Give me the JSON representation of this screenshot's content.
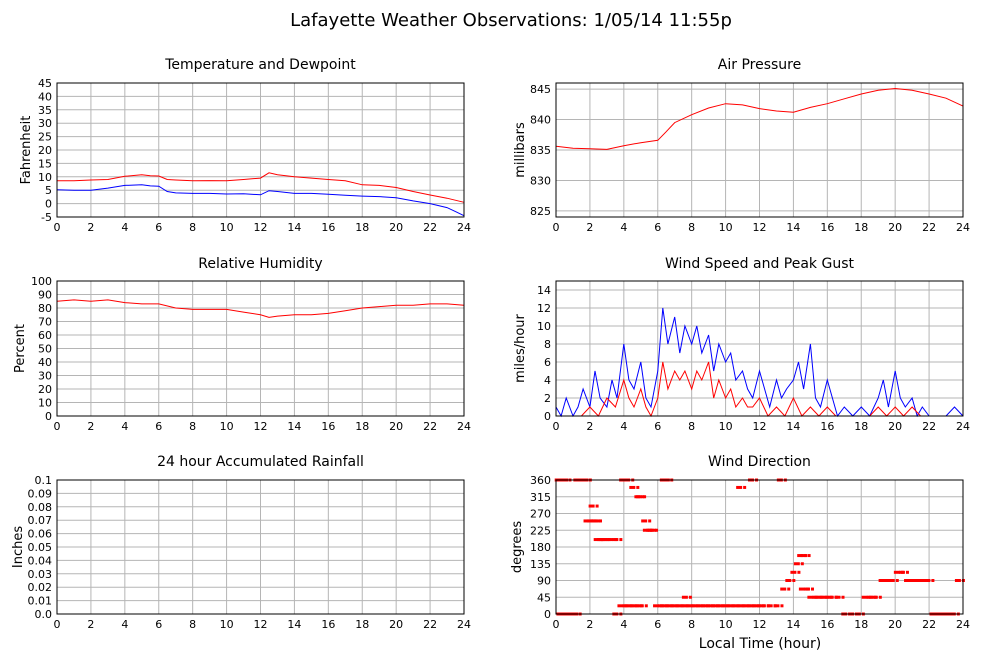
{
  "page": {
    "title": "Lafayette Weather Observations: 1/05/14 11:55p",
    "xlabel": "Local Time (hour)"
  },
  "colors": {
    "red": "#ff0000",
    "blue": "#0000ff",
    "grid": "#b5b5b5"
  },
  "chart_data": [
    {
      "id": "temp",
      "type": "line",
      "title": "Temperature and Dewpoint",
      "xlabel": "",
      "ylabel": "Fahrenheit",
      "xlim": [
        0,
        24
      ],
      "ylim": [
        -5,
        45
      ],
      "xticks": [
        0,
        2,
        4,
        6,
        8,
        10,
        12,
        14,
        16,
        18,
        20,
        22,
        24
      ],
      "yticks": [
        -5,
        0,
        5,
        10,
        15,
        20,
        25,
        30,
        35,
        40,
        45
      ],
      "grid": true,
      "series": [
        {
          "color": "#ff0000",
          "x": [
            0,
            1,
            2,
            3,
            4,
            5,
            5.5,
            6,
            6.5,
            7,
            8,
            9,
            10,
            11,
            12,
            12.5,
            13,
            14,
            15,
            16,
            17,
            18,
            19,
            20,
            21,
            22,
            23,
            24
          ],
          "y": [
            8.5,
            8.5,
            8.8,
            9.0,
            10.2,
            10.8,
            10.4,
            10.3,
            9.0,
            8.8,
            8.5,
            8.6,
            8.5,
            9.0,
            9.5,
            11.5,
            10.8,
            10.0,
            9.5,
            9.0,
            8.5,
            7.0,
            6.8,
            6.0,
            4.5,
            3.2,
            2.0,
            0.5
          ]
        },
        {
          "color": "#0000ff",
          "x": [
            0,
            1,
            2,
            3,
            4,
            5,
            5.5,
            6,
            6.5,
            7,
            8,
            9,
            10,
            11,
            12,
            12.5,
            13,
            14,
            15,
            16,
            17,
            18,
            19,
            20,
            21,
            22,
            23,
            23.5,
            24
          ],
          "y": [
            5.2,
            5.0,
            5.0,
            5.8,
            6.8,
            7.0,
            6.6,
            6.5,
            4.5,
            4.0,
            3.8,
            3.8,
            3.6,
            3.7,
            3.3,
            4.8,
            4.5,
            3.8,
            3.8,
            3.5,
            3.1,
            2.8,
            2.6,
            2.2,
            1.0,
            0.0,
            -1.5,
            -3.0,
            -4.5
          ]
        }
      ]
    },
    {
      "id": "pressure",
      "type": "line",
      "title": "Air Pressure",
      "xlabel": "",
      "ylabel": "millibars",
      "xlim": [
        0,
        24
      ],
      "ylim": [
        824,
        846
      ],
      "xticks": [
        0,
        2,
        4,
        6,
        8,
        10,
        12,
        14,
        16,
        18,
        20,
        22,
        24
      ],
      "yticks": [
        825,
        830,
        835,
        840,
        845
      ],
      "grid": true,
      "series": [
        {
          "color": "#ff0000",
          "x": [
            0,
            1,
            2,
            3,
            4,
            5,
            6,
            6.5,
            7,
            8,
            9,
            10,
            11,
            12,
            13,
            14,
            15,
            16,
            17,
            18,
            19,
            20,
            21,
            22,
            23,
            24
          ],
          "y": [
            835.6,
            835.3,
            835.2,
            835.1,
            835.7,
            836.2,
            836.6,
            838.0,
            839.5,
            840.8,
            841.9,
            842.6,
            842.4,
            841.8,
            841.4,
            841.2,
            842.0,
            842.6,
            843.4,
            844.2,
            844.8,
            845.1,
            844.8,
            844.2,
            843.5,
            842.2
          ]
        }
      ]
    },
    {
      "id": "humidity",
      "type": "line",
      "title": "Relative Humidity",
      "xlabel": "",
      "ylabel": "Percent",
      "xlim": [
        0,
        24
      ],
      "ylim": [
        0,
        100
      ],
      "xticks": [
        0,
        2,
        4,
        6,
        8,
        10,
        12,
        14,
        16,
        18,
        20,
        22,
        24
      ],
      "yticks": [
        0,
        10,
        20,
        30,
        40,
        50,
        60,
        70,
        80,
        90,
        100
      ],
      "grid": true,
      "series": [
        {
          "color": "#ff0000",
          "x": [
            0,
            1,
            2,
            3,
            4,
            5,
            6,
            7,
            8,
            9,
            10,
            11,
            12,
            12.5,
            13,
            14,
            15,
            16,
            17,
            18,
            19,
            20,
            21,
            22,
            23,
            24
          ],
          "y": [
            85,
            86,
            85,
            86,
            84,
            83,
            83,
            80,
            79,
            79,
            79,
            77,
            75,
            73,
            74,
            75,
            75,
            76,
            78,
            80,
            81,
            82,
            82,
            83,
            83,
            82
          ]
        }
      ]
    },
    {
      "id": "wind",
      "type": "line",
      "title": "Wind Speed and Peak Gust",
      "xlabel": "",
      "ylabel": "miles/hour",
      "xlim": [
        0,
        24
      ],
      "ylim": [
        0,
        15
      ],
      "xticks": [
        0,
        2,
        4,
        6,
        8,
        10,
        12,
        14,
        16,
        18,
        20,
        22,
        24
      ],
      "yticks": [
        0,
        2,
        4,
        6,
        8,
        10,
        12,
        14
      ],
      "grid": true,
      "series": [
        {
          "color": "#0000ff",
          "x": [
            0,
            0.3,
            0.6,
            1,
            1.3,
            1.6,
            2,
            2.3,
            2.6,
            3,
            3.3,
            3.6,
            4,
            4.3,
            4.6,
            5,
            5.3,
            5.6,
            6,
            6.3,
            6.6,
            7,
            7.3,
            7.6,
            8,
            8.3,
            8.6,
            9,
            9.3,
            9.6,
            10,
            10.3,
            10.6,
            11,
            11.3,
            11.6,
            12,
            12.3,
            12.6,
            13,
            13.3,
            13.6,
            14,
            14.3,
            14.6,
            15,
            15.3,
            15.6,
            16,
            16.3,
            16.6,
            17,
            17.5,
            18,
            18.5,
            19,
            19.3,
            19.6,
            20,
            20.3,
            20.6,
            21,
            21.3,
            21.6,
            22,
            22.5,
            23,
            23.5,
            24
          ],
          "y": [
            1,
            0,
            2,
            0,
            1,
            3,
            1,
            5,
            2,
            1,
            4,
            2,
            8,
            4,
            3,
            6,
            2,
            1,
            5,
            12,
            8,
            11,
            7,
            10,
            8,
            10,
            7,
            9,
            5,
            8,
            6,
            7,
            4,
            5,
            3,
            2,
            5,
            3,
            1,
            4,
            2,
            3,
            4,
            6,
            3,
            8,
            2,
            1,
            4,
            2,
            0,
            1,
            0,
            1,
            0,
            2,
            4,
            1,
            5,
            2,
            1,
            2,
            0,
            1,
            0,
            0,
            0,
            1,
            0
          ]
        },
        {
          "color": "#ff0000",
          "x": [
            0,
            0.5,
            1,
            1.5,
            2,
            2.5,
            3,
            3.5,
            4,
            4.3,
            4.6,
            5,
            5.3,
            5.6,
            6,
            6.3,
            6.6,
            7,
            7.3,
            7.6,
            8,
            8.3,
            8.6,
            9,
            9.3,
            9.6,
            10,
            10.3,
            10.6,
            11,
            11.3,
            11.6,
            12,
            12.5,
            13,
            13.5,
            14,
            14.5,
            15,
            15.5,
            16,
            16.5,
            17,
            17.5,
            18,
            18.5,
            19,
            19.5,
            20,
            20.5,
            21,
            21.5,
            22,
            23,
            24
          ],
          "y": [
            0,
            0,
            0,
            0,
            1,
            0,
            2,
            1,
            4,
            2,
            1,
            3,
            1,
            0,
            2,
            6,
            3,
            5,
            4,
            5,
            3,
            5,
            4,
            6,
            2,
            4,
            2,
            3,
            1,
            2,
            1,
            1,
            2,
            0,
            1,
            0,
            2,
            0,
            1,
            0,
            1,
            0,
            0,
            0,
            0,
            0,
            1,
            0,
            1,
            0,
            1,
            0,
            0,
            0,
            0
          ]
        }
      ]
    },
    {
      "id": "rain",
      "type": "line",
      "title": "24 hour Accumulated Rainfall",
      "xlabel": "",
      "ylabel": "Inches",
      "xlim": [
        0,
        24
      ],
      "ylim": [
        0,
        0.1
      ],
      "xticks": [
        0,
        2,
        4,
        6,
        8,
        10,
        12,
        14,
        16,
        18,
        20,
        22,
        24
      ],
      "yticks": [
        "0.0",
        "0.01",
        "0.02",
        "0.03",
        "0.04",
        "0.05",
        "0.06",
        "0.07",
        "0.08",
        "0.09",
        "0.1"
      ],
      "grid": true,
      "series": [
        {
          "color": "#ff0000",
          "x": [
            0,
            24
          ],
          "y": [
            0,
            0
          ]
        }
      ]
    },
    {
      "id": "direction",
      "type": "scatter",
      "title": "Wind Direction",
      "xlabel": "Local Time (hour)",
      "ylabel": "degrees",
      "xlim": [
        0,
        24
      ],
      "ylim": [
        0,
        360
      ],
      "xticks": [
        0,
        2,
        4,
        6,
        8,
        10,
        12,
        14,
        16,
        18,
        20,
        22,
        24
      ],
      "yticks": [
        0,
        45,
        90,
        135,
        180,
        225,
        270,
        315,
        360
      ],
      "grid": true,
      "series": [
        {
          "color": "#ff0000",
          "x": [
            0.1,
            0.3,
            0.5,
            0.7,
            0.9,
            1.1,
            0.2,
            0.5,
            0.8,
            1.2,
            1.5,
            1.8,
            2.0,
            2.2,
            2.4,
            2.6,
            2.8,
            3.2,
            3.5,
            3.8,
            4.1,
            4.4,
            4.7,
            5.0,
            5.3,
            5.6,
            5.9,
            6.2,
            6.5,
            6.8,
            7.1,
            7.4,
            7.7,
            8.0,
            8.3,
            8.6,
            8.9,
            9.2,
            9.5,
            9.8,
            10.1,
            10.4,
            10.7,
            11.0,
            11.3,
            11.6,
            11.9,
            12.2,
            12.6,
            13.0,
            13.4,
            13.7,
            14.0,
            14.2,
            14.4,
            14.6,
            15.0,
            15.3,
            15.6,
            15.9,
            16.2,
            16.6,
            17.0,
            17.4,
            17.8,
            18.2,
            18.5,
            18.8,
            19.2,
            19.5,
            19.8,
            20.1,
            20.4,
            20.7,
            21.0,
            21.3,
            21.6,
            21.9,
            22.2,
            22.5,
            22.8,
            23.1,
            23.4,
            23.7,
            4.5,
            4.9,
            5.2,
            5.5,
            2.1,
            3.5,
            6.3,
            6.5,
            7.6,
            10.8,
            11.5,
            13.2,
            14.5,
            14.8,
            1.4,
            1.7,
            2.3,
            2.7,
            3.9,
            4.2,
            4.8
          ],
          "y": [
            360,
            360,
            360,
            0,
            0,
            0,
            0,
            0,
            0,
            360,
            360,
            250,
            250,
            250,
            200,
            200,
            200,
            200,
            0,
            22,
            22,
            22,
            22,
            22,
            225,
            225,
            22,
            22,
            22,
            22,
            22,
            22,
            22,
            22,
            22,
            22,
            22,
            22,
            22,
            22,
            22,
            22,
            22,
            22,
            22,
            22,
            22,
            22,
            22,
            22,
            67,
            90,
            112,
            135,
            157,
            157,
            45,
            45,
            45,
            45,
            45,
            45,
            0,
            0,
            0,
            45,
            45,
            45,
            90,
            90,
            90,
            112,
            112,
            90,
            90,
            90,
            90,
            90,
            0,
            0,
            0,
            0,
            0,
            90,
            340,
            315,
            250,
            225,
            290,
            200,
            360,
            360,
            45,
            340,
            360,
            360,
            67,
            67,
            360,
            360,
            250,
            200,
            360,
            360,
            315
          ]
        }
      ]
    }
  ]
}
